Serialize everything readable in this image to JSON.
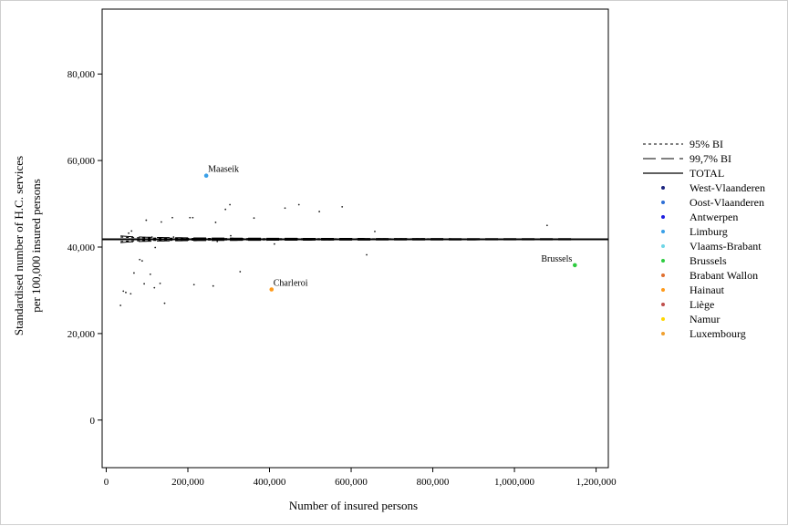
{
  "chart_data": {
    "type": "scatter",
    "title": "",
    "xlabel": "Number of insured persons",
    "ylabel_line1": "Standardised number of H.C. services",
    "ylabel_line2": "per 100,000 insured persons",
    "xlim": [
      -10000,
      1230000
    ],
    "ylim": [
      -11000,
      95000
    ],
    "x_ticks": [
      0,
      200000,
      400000,
      600000,
      800000,
      1000000,
      1200000
    ],
    "x_tick_labels": [
      "0",
      "200,000",
      "400,000",
      "600,000",
      "800,000",
      "1,000,000",
      "1,200,000"
    ],
    "y_ticks": [
      0,
      20000,
      40000,
      60000,
      80000
    ],
    "y_tick_labels": [
      "0",
      "20,000",
      "40,000",
      "60,000",
      "80,000"
    ],
    "grid": false,
    "legend_position": "right",
    "total": 41800,
    "band_x_range": [
      35000,
      1150000
    ],
    "bands": [
      {
        "name": "95% BI",
        "style": "short-dash",
        "z": 1.96
      },
      {
        "name": "99,7% BI",
        "style": "long-dash",
        "z": 3.0
      }
    ],
    "total_label": "TOTAL",
    "regions": [
      {
        "name": "West-Vlaanderen",
        "color": "#1a237e"
      },
      {
        "name": "Oost-Vlaanderen",
        "color": "#2e6fd6"
      },
      {
        "name": "Antwerpen",
        "color": "#1e1ee0"
      },
      {
        "name": "Limburg",
        "color": "#3aa0e8"
      },
      {
        "name": "Vlaams-Brabant",
        "color": "#6fd6e6"
      },
      {
        "name": "Brussels",
        "color": "#2ecc40"
      },
      {
        "name": "Brabant Wallon",
        "color": "#e07030"
      },
      {
        "name": "Hainaut",
        "color": "#ff9a1a"
      },
      {
        "name": "Liège",
        "color": "#c0504d"
      },
      {
        "name": "Namur",
        "color": "#ffd700"
      },
      {
        "name": "Luxembourg",
        "color": "#f0a030"
      }
    ],
    "points": [
      {
        "x": 35000,
        "y": 26500
      },
      {
        "x": 42000,
        "y": 29800
      },
      {
        "x": 48000,
        "y": 29500
      },
      {
        "x": 55000,
        "y": 43200
      },
      {
        "x": 60000,
        "y": 29200
      },
      {
        "x": 62000,
        "y": 43700
      },
      {
        "x": 68000,
        "y": 34000
      },
      {
        "x": 82000,
        "y": 37100
      },
      {
        "x": 88000,
        "y": 36800
      },
      {
        "x": 93000,
        "y": 31500
      },
      {
        "x": 98000,
        "y": 46200
      },
      {
        "x": 108000,
        "y": 33700
      },
      {
        "x": 112000,
        "y": 42300
      },
      {
        "x": 118000,
        "y": 30600
      },
      {
        "x": 120000,
        "y": 39900
      },
      {
        "x": 132000,
        "y": 31600
      },
      {
        "x": 135000,
        "y": 45800
      },
      {
        "x": 143000,
        "y": 27000
      },
      {
        "x": 162000,
        "y": 46800
      },
      {
        "x": 165000,
        "y": 42300
      },
      {
        "x": 205000,
        "y": 46800
      },
      {
        "x": 212000,
        "y": 46800
      },
      {
        "x": 215000,
        "y": 31300
      },
      {
        "x": 262000,
        "y": 31000
      },
      {
        "x": 268000,
        "y": 45700
      },
      {
        "x": 272000,
        "y": 41300
      },
      {
        "x": 292000,
        "y": 48700
      },
      {
        "x": 303000,
        "y": 49800
      },
      {
        "x": 305000,
        "y": 42600
      },
      {
        "x": 328000,
        "y": 34300
      },
      {
        "x": 362000,
        "y": 46700
      },
      {
        "x": 412000,
        "y": 40700
      },
      {
        "x": 438000,
        "y": 49000
      },
      {
        "x": 472000,
        "y": 49800
      },
      {
        "x": 522000,
        "y": 48200
      },
      {
        "x": 578000,
        "y": 49300
      },
      {
        "x": 638000,
        "y": 38200
      },
      {
        "x": 658000,
        "y": 43600
      },
      {
        "x": 1080000,
        "y": 45000
      }
    ],
    "labeled_points": [
      {
        "label": "Maaseik",
        "x": 245000,
        "y": 56500,
        "region": "Limburg",
        "color": "#3aa0e8",
        "label_side": "right"
      },
      {
        "label": "Charleroi",
        "x": 405000,
        "y": 30200,
        "region": "Hainaut",
        "color": "#ff9a1a",
        "label_side": "right"
      },
      {
        "label": "Brussels",
        "x": 1148000,
        "y": 35800,
        "region": "Brussels",
        "color": "#2ecc40",
        "label_side": "left"
      }
    ]
  }
}
